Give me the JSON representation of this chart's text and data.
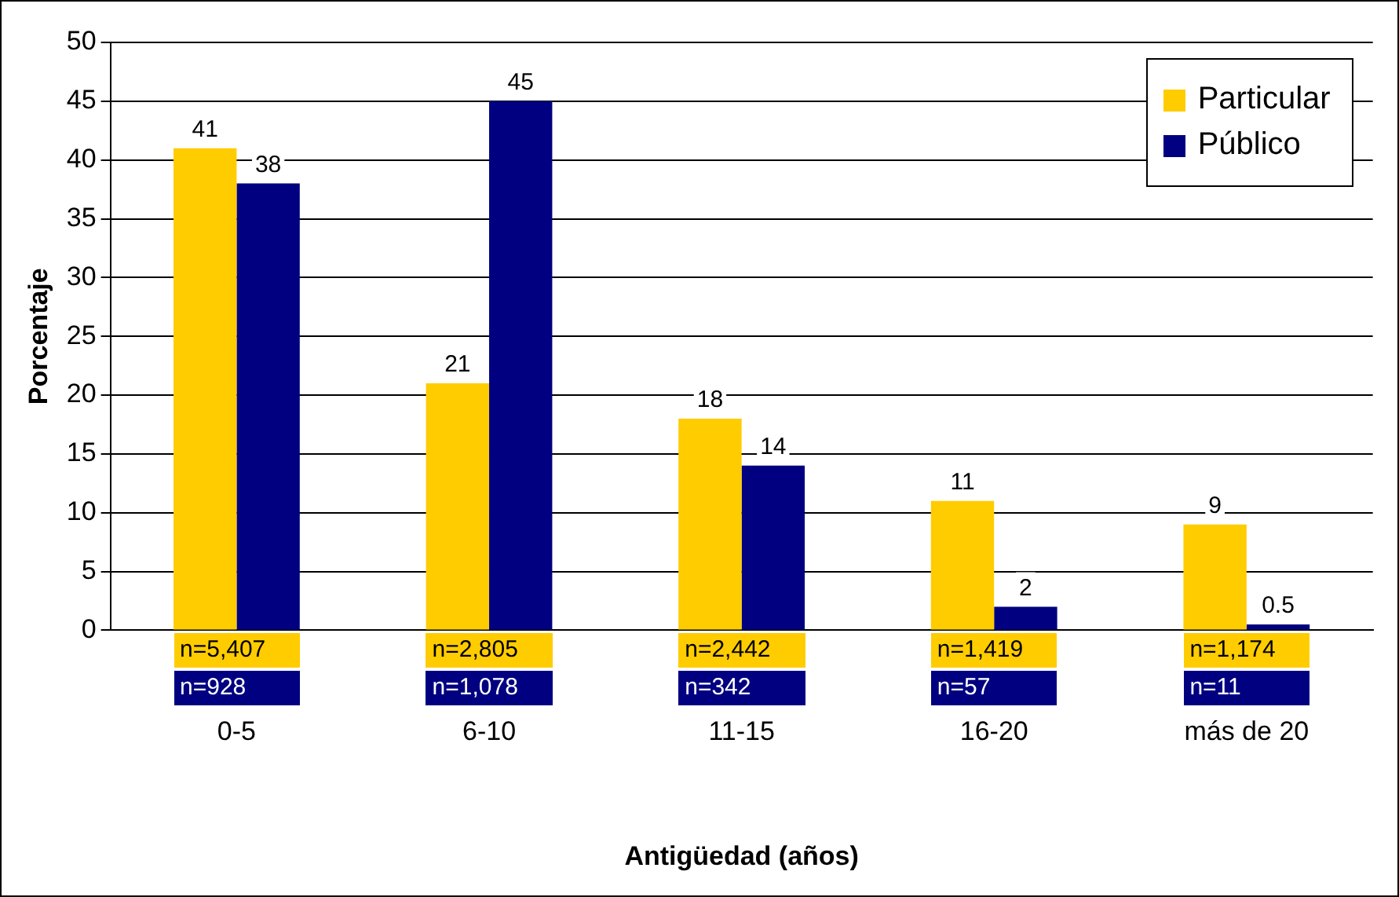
{
  "chart_data": {
    "type": "bar",
    "xlabel": "Antigüedad (años)",
    "ylabel": "Porcentaje",
    "categories": [
      "0-5",
      "6-10",
      "11-15",
      "16-20",
      "más de 20"
    ],
    "series": [
      {
        "name": "Particular",
        "color": "#ffcc00",
        "values": [
          41,
          21,
          18,
          11,
          9
        ]
      },
      {
        "name": "Público",
        "color": "#000080",
        "values": [
          38,
          45,
          14,
          2,
          0.5
        ]
      }
    ],
    "ylim": [
      0,
      50
    ],
    "yticks": [
      0,
      5,
      10,
      15,
      20,
      25,
      30,
      35,
      40,
      45,
      50
    ],
    "grid": "y",
    "legend": "top right",
    "data_labels": true,
    "annotations": [
      "n=5,407",
      "n=2,805",
      "n=2,442",
      "n=1,419",
      "n=1,174",
      "n=928",
      "n=1,078",
      "n=342",
      "n=57",
      "n=11"
    ]
  }
}
